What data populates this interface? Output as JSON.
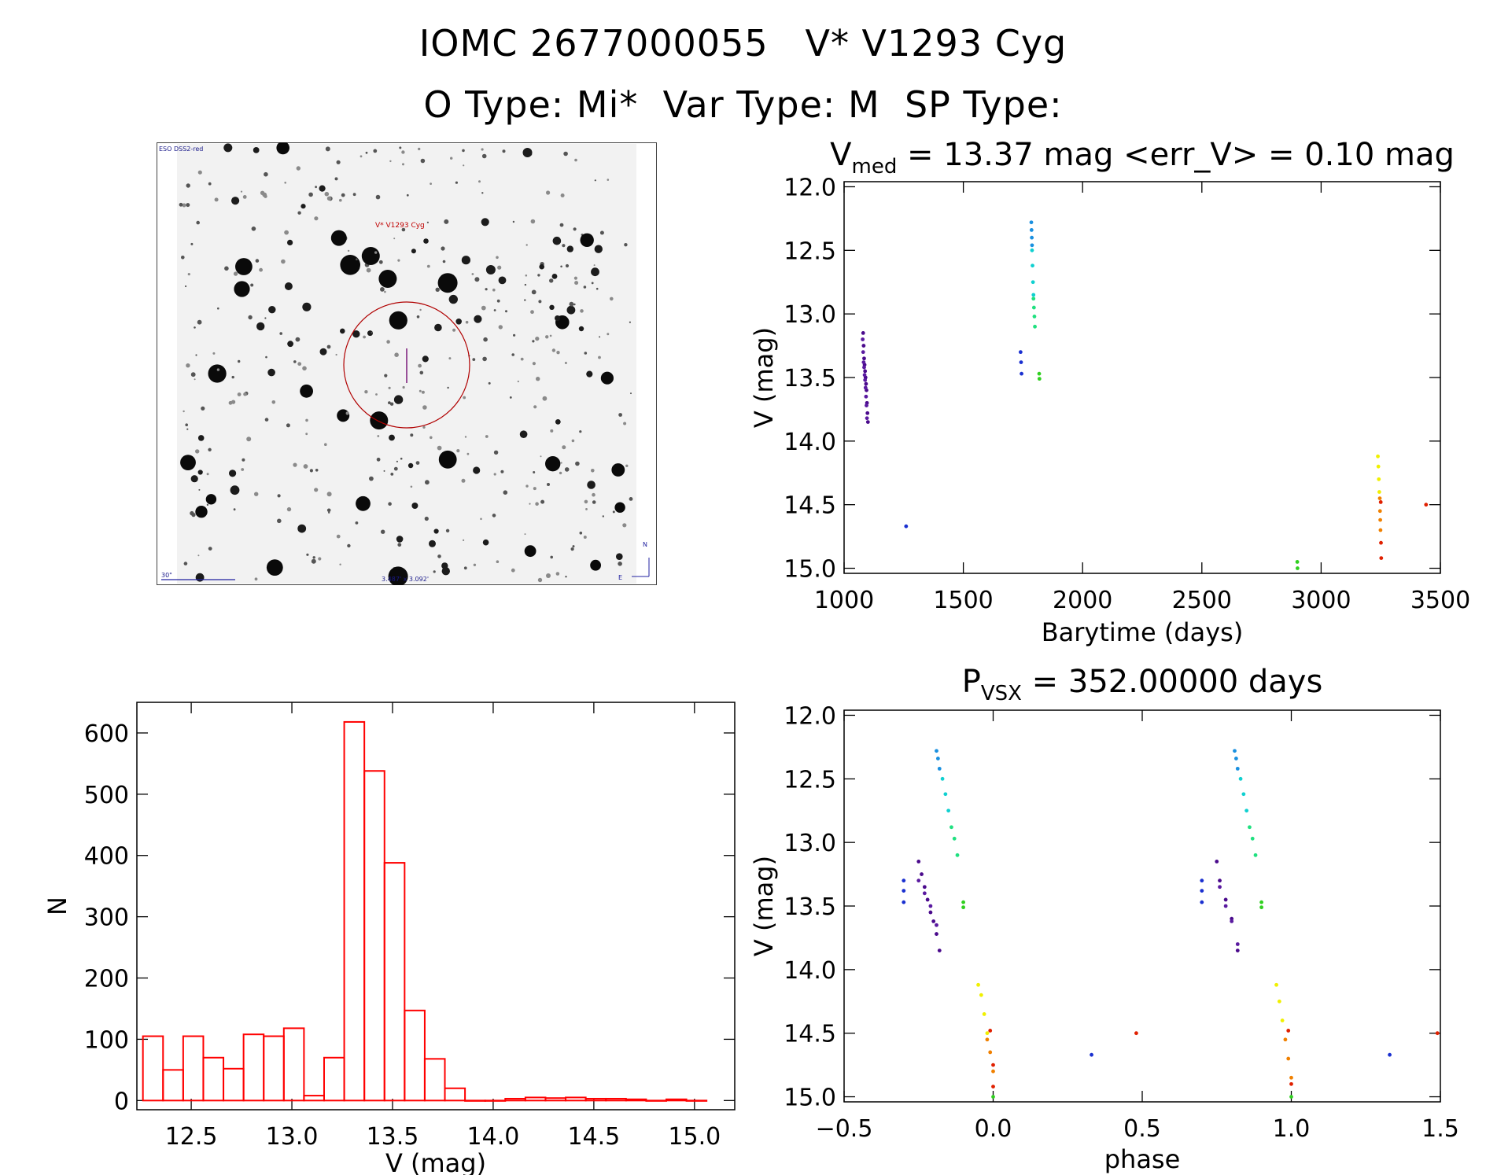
{
  "header": {
    "title_line1": "IOMC 2677000055   V* V1293 Cyg",
    "title_line2": "O Type: Mi*  Var Type: M  SP Type:"
  },
  "finder_chart": {
    "survey_label": "ESO DSS2-red",
    "target_label": "V* V1293 Cyg",
    "scale_label": "30\"",
    "fov_label": "3.487' x 3.092'",
    "compass_n": "N",
    "compass_e": "E",
    "marker_color": "#c00000"
  },
  "chart_data": [
    {
      "id": "lightcurve",
      "type": "scatter",
      "title": "V",
      "title_sub": "med",
      "title_rest": " = 13.37 mag <err_V> = 0.10 mag",
      "xlabel": "Barytime (days)",
      "ylabel": "V (mag)",
      "xlim": [
        1000,
        3500
      ],
      "ylim": [
        15.0,
        12.0
      ],
      "y_inverted": true,
      "xticks": [
        "1000",
        "1500",
        "2000",
        "2500",
        "3000",
        "3500"
      ],
      "yticks": [
        "12.0",
        "12.5",
        "13.0",
        "13.5",
        "14.0",
        "14.5",
        "15.0"
      ],
      "groups": [
        {
          "color": "#4a0a8c",
          "x": [
            1080,
            1082,
            1084,
            1086,
            1088,
            1090,
            1092,
            1094,
            1096,
            1098,
            1100
          ],
          "y": [
            13.15,
            13.25,
            13.35,
            13.4,
            13.45,
            13.5,
            13.55,
            13.6,
            13.7,
            13.78,
            13.85
          ]
        },
        {
          "color": "#5a1aa0",
          "x": [
            1078,
            1080,
            1082,
            1084,
            1086,
            1088,
            1090,
            1092,
            1094,
            1096
          ],
          "y": [
            13.2,
            13.3,
            13.38,
            13.42,
            13.48,
            13.52,
            13.58,
            13.65,
            13.72,
            13.82
          ]
        },
        {
          "color": "#1a30d0",
          "x": [
            1260,
            1740,
            1742,
            1744
          ],
          "y": [
            14.67,
            13.3,
            13.38,
            13.47
          ]
        },
        {
          "color": "#1a90e0",
          "x": [
            1785,
            1786,
            1787,
            1788
          ],
          "y": [
            12.28,
            12.34,
            12.4,
            12.46
          ]
        },
        {
          "color": "#10d0d0",
          "x": [
            1788,
            1790,
            1792,
            1794
          ],
          "y": [
            12.5,
            12.62,
            12.75,
            12.85
          ]
        },
        {
          "color": "#20e080",
          "x": [
            1794,
            1796,
            1798,
            1800
          ],
          "y": [
            12.88,
            12.95,
            13.02,
            13.1
          ]
        },
        {
          "color": "#30d020",
          "x": [
            1818,
            1819,
            2900,
            2901
          ],
          "y": [
            13.47,
            13.51,
            14.95,
            15.0
          ]
        },
        {
          "color": "#f0f000",
          "x": [
            3238,
            3240,
            3242,
            3244
          ],
          "y": [
            14.12,
            14.2,
            14.3,
            14.4
          ]
        },
        {
          "color": "#f08000",
          "x": [
            3246,
            3247,
            3248,
            3249
          ],
          "y": [
            14.45,
            14.55,
            14.62,
            14.7
          ]
        },
        {
          "color": "#e02000",
          "x": [
            3250,
            3251,
            3252,
            3440
          ],
          "y": [
            14.48,
            14.8,
            14.92,
            14.5
          ]
        }
      ]
    },
    {
      "id": "histogram",
      "type": "bar",
      "xlabel": "V (mag)",
      "ylabel": "N",
      "xlim": [
        12.23,
        15.2
      ],
      "ylim": [
        -15,
        650
      ],
      "xticks": [
        "12.5",
        "13.0",
        "13.5",
        "14.0",
        "14.5",
        "15.0"
      ],
      "yticks": [
        "0",
        "100",
        "200",
        "300",
        "400",
        "500",
        "600"
      ],
      "bin_width": 0.1,
      "bin_starts": [
        12.26,
        12.36,
        12.46,
        12.56,
        12.66,
        12.76,
        12.86,
        12.96,
        13.06,
        13.16,
        13.26,
        13.36,
        13.46,
        13.56,
        13.66,
        13.76,
        13.86,
        13.96,
        14.06,
        14.16,
        14.26,
        14.36,
        14.46,
        14.56,
        14.66,
        14.76,
        14.86,
        14.96
      ],
      "values": [
        105,
        50,
        105,
        70,
        52,
        108,
        105,
        118,
        8,
        70,
        618,
        538,
        388,
        147,
        68,
        20,
        0,
        0,
        3,
        5,
        4,
        5,
        3,
        3,
        2,
        0,
        2,
        0
      ],
      "color": "#ff0000"
    },
    {
      "id": "phased",
      "type": "scatter",
      "title": "P",
      "title_sub": "VSX",
      "title_rest": " = 352.00000 days",
      "xlabel": "phase",
      "ylabel": "V (mag)",
      "xlim": [
        -0.5,
        1.5
      ],
      "ylim": [
        15.0,
        12.0
      ],
      "y_inverted": true,
      "xticks": [
        "−0.5",
        "0.0",
        "0.5",
        "1.0",
        "1.5"
      ],
      "yticks": [
        "12.0",
        "12.5",
        "13.0",
        "13.5",
        "14.0",
        "14.5",
        "15.0"
      ],
      "groups": [
        {
          "color": "#4a0a8c",
          "x": [
            -0.25,
            -0.24,
            -0.23,
            -0.22,
            -0.21,
            -0.2,
            -0.19,
            -0.18,
            0.75,
            0.76,
            0.78,
            0.8,
            0.82
          ],
          "y": [
            13.15,
            13.25,
            13.35,
            13.45,
            13.55,
            13.62,
            13.72,
            13.85,
            13.15,
            13.3,
            13.45,
            13.6,
            13.85
          ]
        },
        {
          "color": "#5a1aa0",
          "x": [
            -0.25,
            -0.23,
            -0.21,
            -0.19,
            0.76,
            0.78,
            0.8,
            0.82
          ],
          "y": [
            13.3,
            13.4,
            13.5,
            13.65,
            13.35,
            13.5,
            13.62,
            13.8
          ]
        },
        {
          "color": "#1a30d0",
          "x": [
            -0.3,
            -0.3,
            -0.3,
            0.33,
            0.7,
            0.7,
            0.7,
            1.33
          ],
          "y": [
            13.3,
            13.38,
            13.47,
            14.67,
            13.3,
            13.38,
            13.47,
            14.67
          ]
        },
        {
          "color": "#1a90e0",
          "x": [
            -0.19,
            -0.185,
            -0.18,
            0.81,
            0.815,
            0.82
          ],
          "y": [
            12.28,
            12.34,
            12.42,
            12.28,
            12.34,
            12.42
          ]
        },
        {
          "color": "#10d0d0",
          "x": [
            -0.17,
            -0.16,
            -0.15,
            0.83,
            0.84,
            0.85
          ],
          "y": [
            12.5,
            12.62,
            12.75,
            12.5,
            12.62,
            12.75
          ]
        },
        {
          "color": "#20e080",
          "x": [
            -0.14,
            -0.13,
            -0.12,
            0.86,
            0.87,
            0.88
          ],
          "y": [
            12.88,
            12.97,
            13.1,
            12.88,
            12.97,
            13.1
          ]
        },
        {
          "color": "#30d020",
          "x": [
            -0.1,
            -0.1,
            0.0,
            0.9,
            0.9,
            1.0
          ],
          "y": [
            13.47,
            13.51,
            15.0,
            13.47,
            13.51,
            15.0
          ]
        },
        {
          "color": "#f0f000",
          "x": [
            -0.05,
            -0.04,
            -0.03,
            -0.02,
            0.95,
            0.96,
            0.97
          ],
          "y": [
            14.12,
            14.2,
            14.35,
            14.5,
            14.12,
            14.25,
            14.4
          ]
        },
        {
          "color": "#f08000",
          "x": [
            -0.02,
            -0.01,
            0.0,
            0.98,
            0.99,
            1.0
          ],
          "y": [
            14.55,
            14.65,
            14.8,
            14.55,
            14.7,
            14.85
          ]
        },
        {
          "color": "#e02000",
          "x": [
            -0.01,
            0.0,
            0.0,
            0.48,
            0.99,
            1.0,
            1.49
          ],
          "y": [
            14.48,
            14.75,
            14.92,
            14.5,
            14.48,
            14.9,
            14.5
          ]
        }
      ]
    }
  ]
}
